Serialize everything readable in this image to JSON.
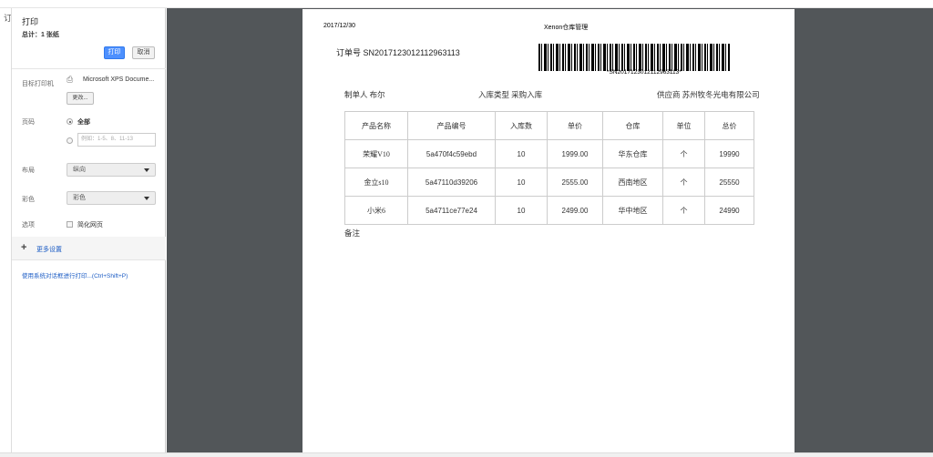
{
  "background_char": "订",
  "print_panel": {
    "title": "打印",
    "total": "总计：1 张纸",
    "print_button": "打印",
    "cancel_button": "取消",
    "destination_label": "目标打印机",
    "printer_name": "Microsoft XPS Docume...",
    "change_button": "更改...",
    "pages_label": "页码",
    "pages_all": "全部",
    "pages_custom_placeholder": "例如：1-5、8、11-13",
    "layout_label": "布局",
    "layout_value": "纵向",
    "color_label": "彩色",
    "color_value": "彩色",
    "options_label": "选项",
    "simplify_label": "简化网页",
    "more_settings": "更多设置",
    "system_dialog_link": "使用系统对话框进行打印...(Ctrl+Shift+P)"
  },
  "document": {
    "date": "2017/12/30",
    "header_title": "Xenon仓库管理",
    "order_label": "订单号",
    "order_number": "SN2017123012112963113",
    "barcode_text": "*SN2017123012112963113*",
    "creator": "制单人 布尔",
    "inbound_type": "入库类型 采购入库",
    "supplier": "供应商 苏州牧冬光电有限公司",
    "table": {
      "headers": [
        "产品名称",
        "产品编号",
        "入库数",
        "单价",
        "仓库",
        "单位",
        "总价"
      ],
      "rows": [
        [
          "荣耀V10",
          "5a470f4c59ebd",
          "10",
          "1999.00",
          "华东仓库",
          "个",
          "19990"
        ],
        [
          "金立s10",
          "5a47110d39206",
          "10",
          "2555.00",
          "西南地区",
          "个",
          "25550"
        ],
        [
          "小米6",
          "5a4711ce77e24",
          "10",
          "2499.00",
          "华中地区",
          "个",
          "24990"
        ]
      ]
    },
    "remarks_label": "备注"
  }
}
